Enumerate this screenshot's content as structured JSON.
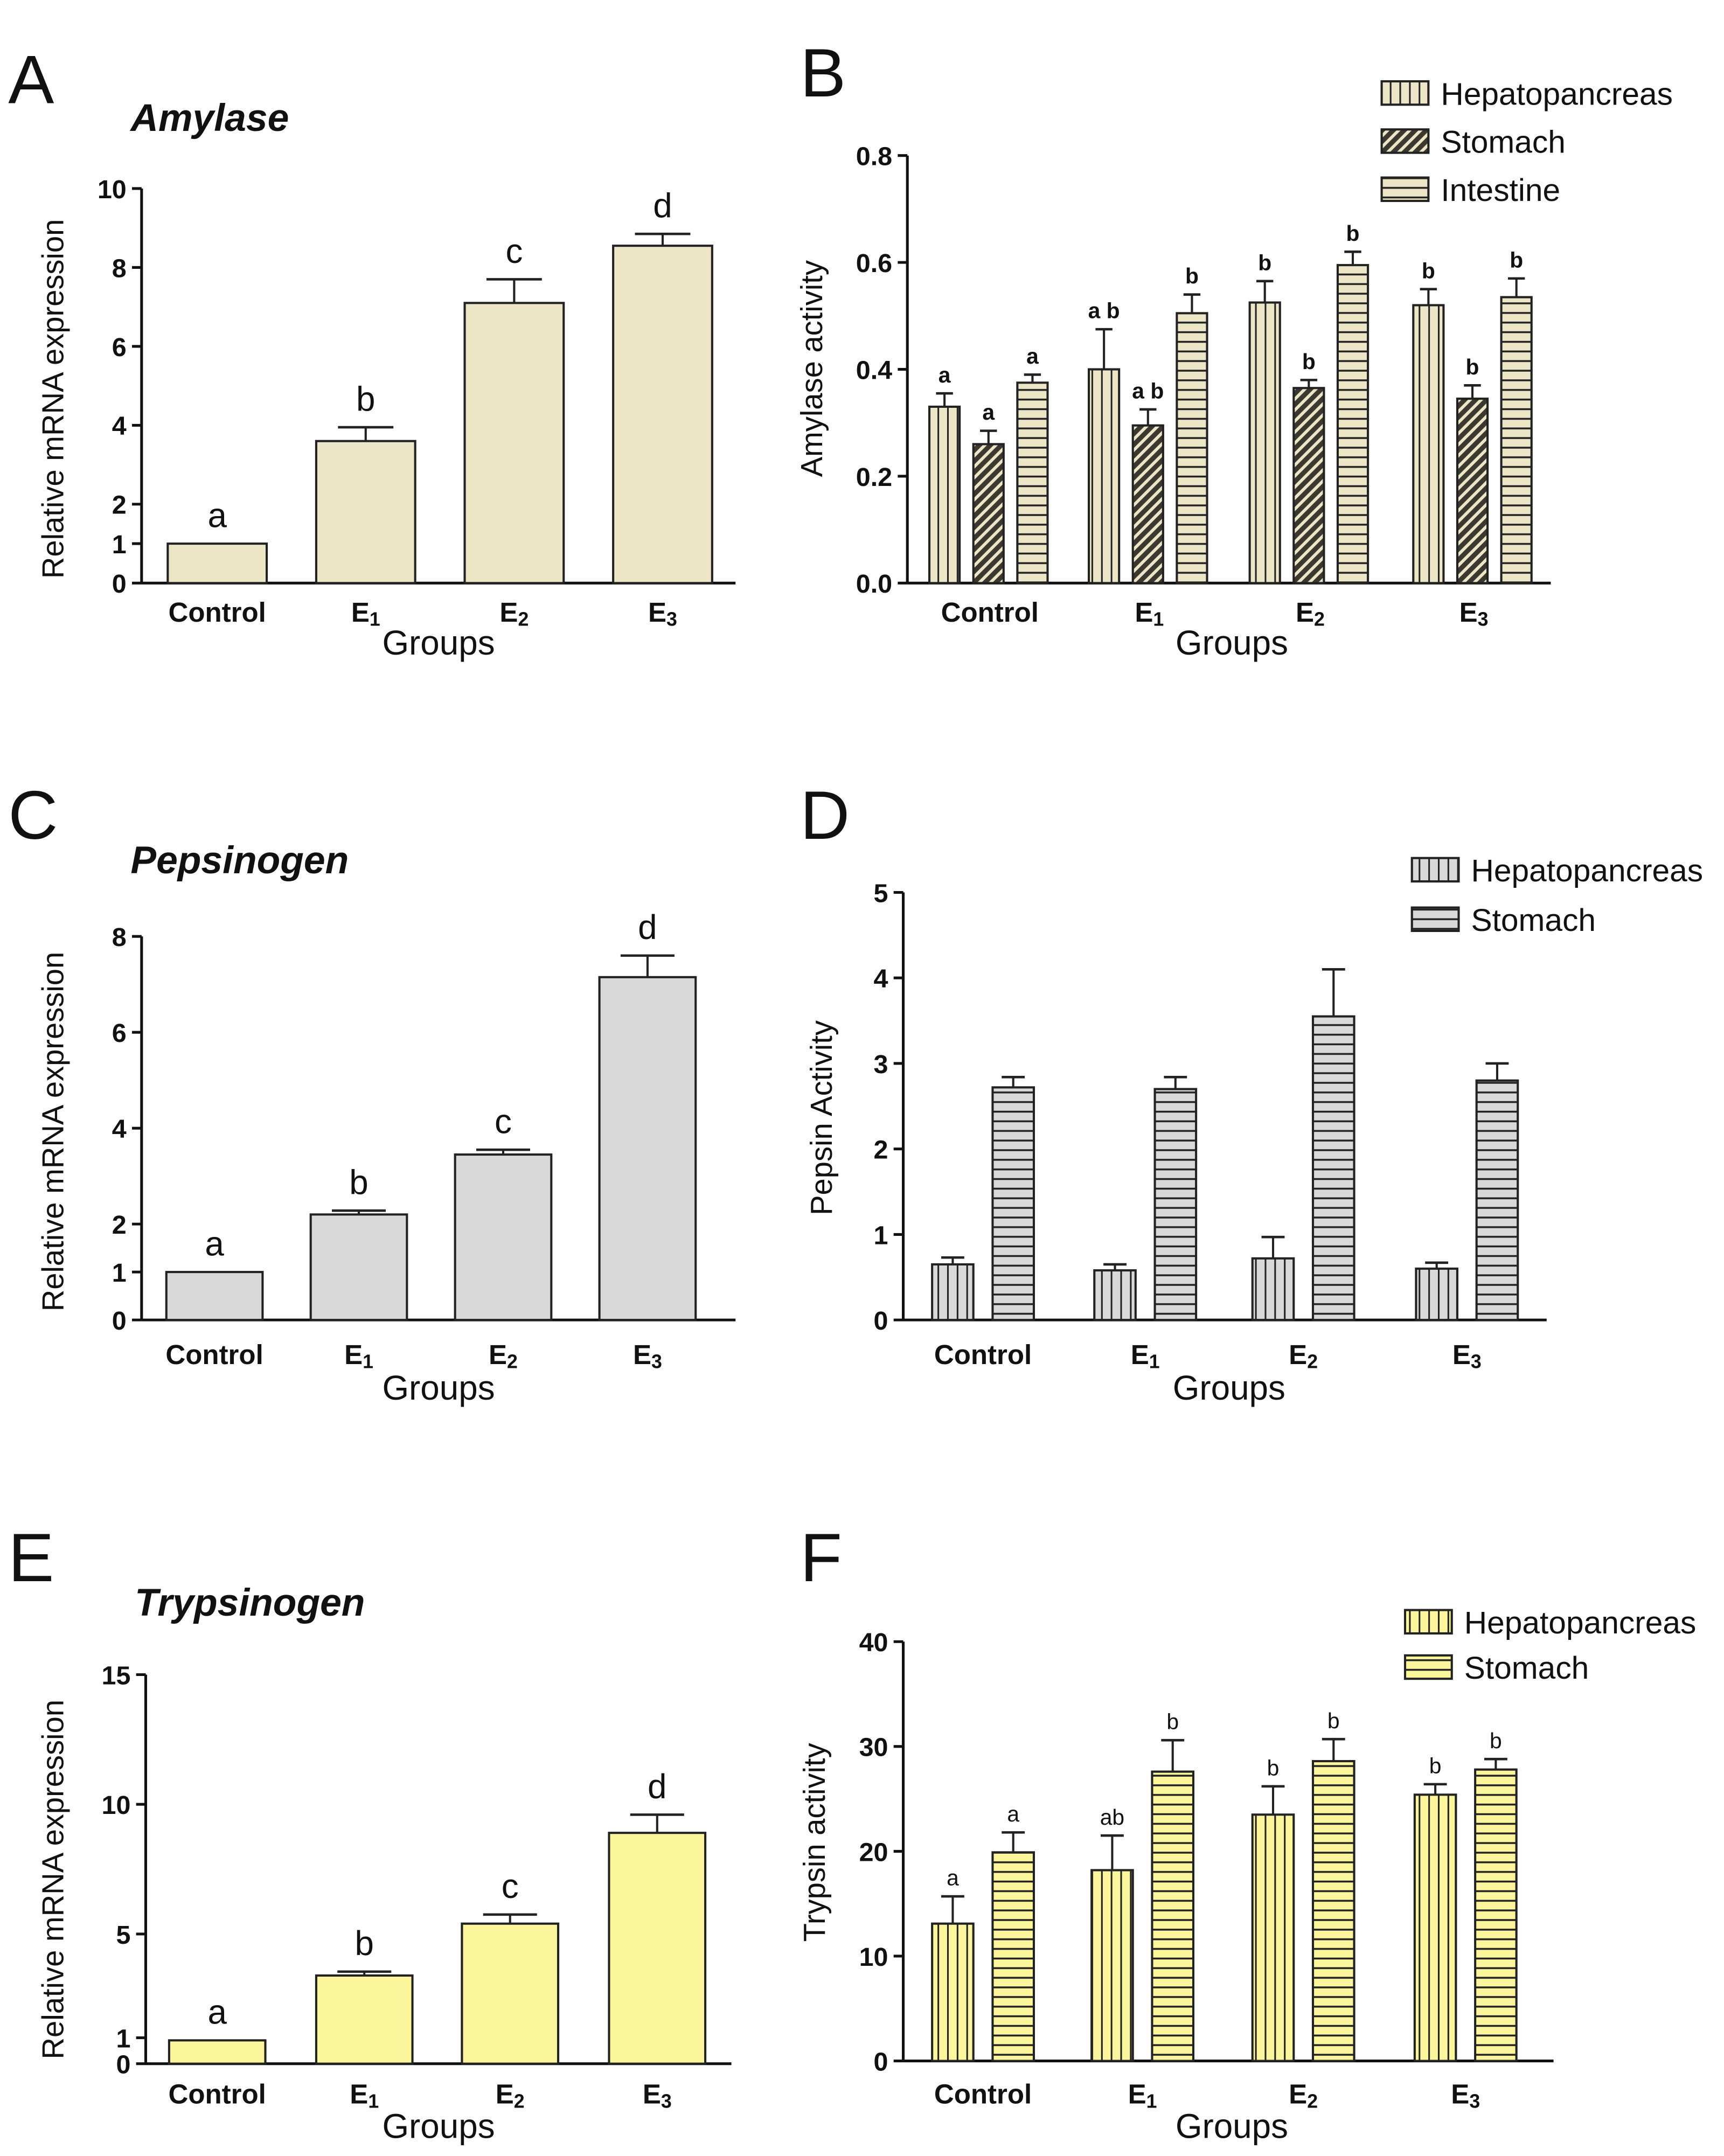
{
  "chart_data": [
    {
      "panel": "A",
      "type": "bar",
      "title": "Amylase",
      "xlabel": "Groups",
      "ylabel": "Relative mRNA expression",
      "categories": [
        "Control",
        "E1",
        "E2",
        "E3"
      ],
      "ylim": [
        0,
        10
      ],
      "yticks": [
        0,
        1,
        2,
        4,
        6,
        8,
        10
      ],
      "fill": "#ede6c6",
      "series": [
        {
          "name": "",
          "pattern": "solid",
          "values": [
            1.0,
            3.6,
            7.1,
            8.55
          ],
          "errors": [
            0,
            0.35,
            0.6,
            0.3
          ],
          "letters": [
            "a",
            "b",
            "c",
            "d"
          ]
        }
      ],
      "letter_style": "regular"
    },
    {
      "panel": "B",
      "type": "bar",
      "title": "",
      "xlabel": "Groups",
      "ylabel": "Amylase activity",
      "categories": [
        "Control",
        "E1",
        "E2",
        "E3"
      ],
      "ylim": [
        0,
        0.8
      ],
      "yticks": [
        "0.0",
        "0.2",
        "0.4",
        "0.6",
        "0.8"
      ],
      "fill": "#ede6c6",
      "series": [
        {
          "name": "Hepatopancreas",
          "pattern": "vertical",
          "values": [
            0.33,
            0.4,
            0.525,
            0.52
          ],
          "errors": [
            0.025,
            0.075,
            0.04,
            0.03
          ],
          "letters": [
            "a",
            "a b",
            "b",
            "b"
          ]
        },
        {
          "name": "Stomach",
          "pattern": "diagonal",
          "values": [
            0.26,
            0.295,
            0.365,
            0.345
          ],
          "errors": [
            0.025,
            0.03,
            0.015,
            0.025
          ],
          "letters": [
            "a",
            "a b",
            "b",
            "b"
          ]
        },
        {
          "name": "Intestine",
          "pattern": "horizontal",
          "values": [
            0.375,
            0.505,
            0.595,
            0.535
          ],
          "errors": [
            0.015,
            0.035,
            0.025,
            0.035
          ],
          "letters": [
            "a",
            "b",
            "b",
            "b"
          ]
        }
      ],
      "legend": "top-right",
      "letter_style": "bold"
    },
    {
      "panel": "C",
      "type": "bar",
      "title": "Pepsinogen",
      "xlabel": "Groups",
      "ylabel": "Relative mRNA expression",
      "categories": [
        "Control",
        "E1",
        "E2",
        "E3"
      ],
      "ylim": [
        0,
        8
      ],
      "yticks": [
        0,
        1,
        2,
        4,
        6,
        8
      ],
      "fill": "#d9d9d9",
      "series": [
        {
          "name": "",
          "pattern": "solid",
          "values": [
            1.0,
            2.2,
            3.45,
            7.15
          ],
          "errors": [
            0,
            0.08,
            0.1,
            0.45
          ],
          "letters": [
            "a",
            "b",
            "c",
            "d"
          ]
        }
      ],
      "letter_style": "regular"
    },
    {
      "panel": "D",
      "type": "bar",
      "title": "",
      "xlabel": "Groups",
      "ylabel": "Pepsin Activity",
      "categories": [
        "Control",
        "E1",
        "E2",
        "E3"
      ],
      "ylim": [
        0,
        5
      ],
      "yticks": [
        0,
        1,
        2,
        3,
        4,
        5
      ],
      "fill": "#d9d9d9",
      "series": [
        {
          "name": "Hepatopancreas",
          "pattern": "vertical",
          "values": [
            0.65,
            0.58,
            0.72,
            0.6
          ],
          "errors": [
            0.08,
            0.07,
            0.25,
            0.07
          ],
          "letters": []
        },
        {
          "name": "Stomach",
          "pattern": "horizontal",
          "values": [
            2.72,
            2.7,
            3.55,
            2.8
          ],
          "errors": [
            0.12,
            0.14,
            0.55,
            0.2
          ],
          "letters": []
        }
      ],
      "legend": "top-right",
      "letter_style": "regular"
    },
    {
      "panel": "E",
      "type": "bar",
      "title": "Trypsinogen",
      "xlabel": "Groups",
      "ylabel": "Relative mRNA expression",
      "categories": [
        "Control",
        "E1",
        "E2",
        "E3"
      ],
      "ylim": [
        0,
        15
      ],
      "yticks": [
        0,
        1,
        5,
        10,
        15
      ],
      "fill": "#fbf59c",
      "series": [
        {
          "name": "",
          "pattern": "solid",
          "values": [
            0.9,
            3.4,
            5.4,
            8.9
          ],
          "errors": [
            0,
            0.15,
            0.35,
            0.7
          ],
          "letters": [
            "a",
            "b",
            "c",
            "d"
          ]
        }
      ],
      "letter_style": "regular"
    },
    {
      "panel": "F",
      "type": "bar",
      "title": "",
      "xlabel": "Groups",
      "ylabel": "Trypsin activity",
      "categories": [
        "Control",
        "E1",
        "E2",
        "E3"
      ],
      "ylim": [
        0,
        40
      ],
      "yticks": [
        0,
        10,
        20,
        30,
        40
      ],
      "fill": "#fbf59c",
      "series": [
        {
          "name": "Hepatopancreas",
          "pattern": "vertical",
          "values": [
            13.1,
            18.2,
            23.5,
            25.4
          ],
          "errors": [
            2.6,
            3.3,
            2.7,
            1.0
          ],
          "letters": [
            "a",
            "ab",
            "b",
            "b"
          ]
        },
        {
          "name": "Stomach",
          "pattern": "horizontal",
          "values": [
            19.9,
            27.6,
            28.6,
            27.8
          ],
          "errors": [
            1.9,
            3.0,
            2.1,
            1.0
          ],
          "letters": [
            "a",
            "b",
            "b",
            "b"
          ]
        }
      ],
      "legend": "top-right",
      "letter_style": "regular"
    }
  ]
}
